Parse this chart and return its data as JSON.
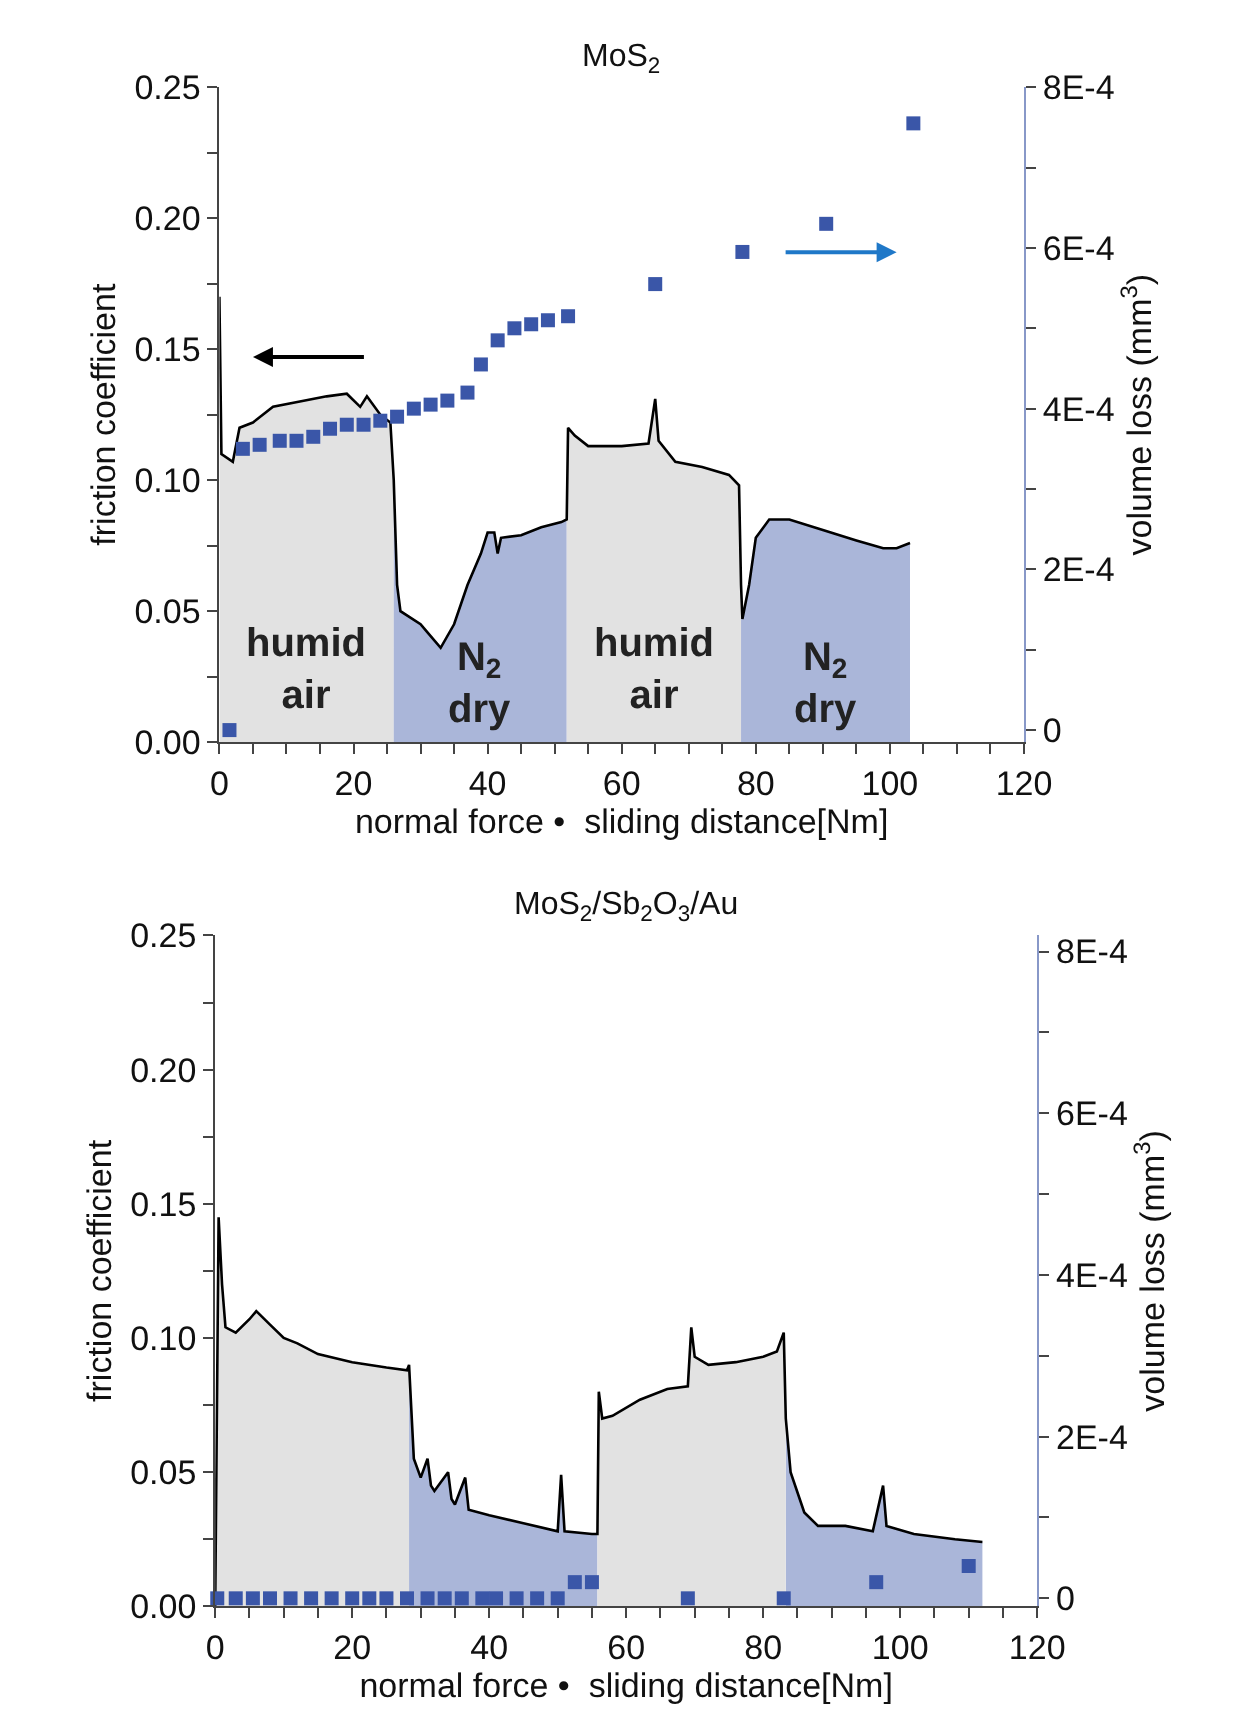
{
  "chart_data": [
    {
      "type": "area",
      "title": "MoS$_{2}$",
      "xlabel": "normal force •  sliding distance[Nm]",
      "ylabel": "friction coefficient",
      "y2label": "volume loss (mm$^{3}$)",
      "xlim": [
        0,
        120
      ],
      "xticks": [
        0,
        {
          "value": 5,
          "label": null
        },
        {
          "value": 10,
          "label": null
        },
        {
          "value": 15,
          "label": null
        },
        20,
        {
          "value": 25,
          "label": null
        },
        {
          "value": 30,
          "label": null
        },
        {
          "value": 35,
          "label": null
        },
        40,
        {
          "value": 45,
          "label": null
        },
        {
          "value": 50,
          "label": null
        },
        {
          "value": 55,
          "label": null
        },
        60,
        {
          "value": 65,
          "label": null
        },
        {
          "value": 70,
          "label": null
        },
        {
          "value": 75,
          "label": null
        },
        80,
        {
          "value": 85,
          "label": null
        },
        {
          "value": 90,
          "label": null
        },
        {
          "value": 95,
          "label": null
        },
        100,
        {
          "value": 105,
          "label": null
        },
        {
          "value": 110,
          "label": null
        },
        {
          "value": 115,
          "label": null
        },
        120
      ],
      "ylim": [
        0,
        0.25
      ],
      "yticks": [
        {
          "value": 0,
          "label": "0.00"
        },
        {
          "value": 0.025,
          "label": null
        },
        {
          "value": 0.05,
          "label": "0.05"
        },
        {
          "value": 0.075,
          "label": null
        },
        {
          "value": 0.1,
          "label": "0.10"
        },
        {
          "value": 0.125,
          "label": null
        },
        {
          "value": 0.15,
          "label": "0.15"
        },
        {
          "value": 0.175,
          "label": null
        },
        {
          "value": 0.2,
          "label": "0.20"
        },
        {
          "value": 0.225,
          "label": null
        },
        {
          "value": 0.25,
          "label": "0.25"
        }
      ],
      "y2lim": [
        -1.5e-05,
        0.0008
      ],
      "y2ticks": [
        {
          "value": 0,
          "label": "0"
        },
        {
          "value": 0.0001,
          "label": null
        },
        {
          "value": 0.0002,
          "label": "2E-4"
        },
        {
          "value": 0.0003,
          "label": null
        },
        {
          "value": 0.0004,
          "label": "4E-4"
        },
        {
          "value": 0.0005,
          "label": null
        },
        {
          "value": 0.0006,
          "label": "6E-4"
        },
        {
          "value": 0.0007,
          "label": null
        },
        {
          "value": 0.0008,
          "label": "8E-4"
        }
      ],
      "series": [
        {
          "color": "#e2e2e2",
          "x": [
            0,
            0.3,
            2,
            3,
            5,
            8,
            12,
            16,
            19,
            21,
            22,
            24,
            25.5,
            26
          ],
          "values": [
            0.17,
            0.11,
            0.107,
            0.12,
            0.122,
            0.128,
            0.13,
            0.132,
            0.133,
            0.128,
            0.132,
            0.125,
            0.122,
            0.1
          ]
        },
        {
          "color": "#aab6d9",
          "x": [
            26,
            26.5,
            27,
            30,
            31,
            33,
            35,
            37,
            39,
            40,
            41,
            41.5,
            42,
            45,
            48,
            51,
            51.8
          ],
          "values": [
            0.1,
            0.06,
            0.05,
            0.045,
            0.042,
            0.036,
            0.045,
            0.06,
            0.072,
            0.08,
            0.08,
            0.072,
            0.078,
            0.079,
            0.082,
            0.084,
            0.085
          ]
        },
        {
          "color": "#e2e2e2",
          "x": [
            51.8,
            52,
            53,
            55,
            60,
            64,
            65,
            65.5,
            68,
            72,
            76,
            77.5,
            77.8
          ],
          "values": [
            0.085,
            0.12,
            0.117,
            0.113,
            0.113,
            0.114,
            0.131,
            0.115,
            0.107,
            0.105,
            0.102,
            0.098,
            0.06
          ]
        },
        {
          "color": "#aab6d9",
          "x": [
            77.8,
            78,
            79,
            80,
            82,
            85,
            90,
            95,
            99,
            101,
            103
          ],
          "values": [
            0.06,
            0.047,
            0.06,
            0.078,
            0.085,
            0.085,
            0.081,
            0.077,
            0.074,
            0.074,
            0.076
          ]
        },
        {
          "type": "line",
          "color": "#000000",
          "x": [
            0,
            0.3,
            2,
            3,
            5,
            8,
            12,
            16,
            19,
            21,
            22,
            24,
            25.5,
            26,
            26.5,
            27,
            30,
            31,
            33,
            35,
            37,
            39,
            40,
            41,
            41.5,
            42,
            45,
            48,
            51,
            51.8,
            52,
            53,
            55,
            60,
            64,
            65,
            65.5,
            68,
            72,
            76,
            77.5,
            77.8,
            78,
            79,
            80,
            82,
            85,
            90,
            95,
            99,
            101,
            103
          ],
          "values": [
            0.17,
            0.11,
            0.107,
            0.12,
            0.122,
            0.128,
            0.13,
            0.132,
            0.133,
            0.128,
            0.132,
            0.125,
            0.122,
            0.1,
            0.06,
            0.05,
            0.045,
            0.042,
            0.036,
            0.045,
            0.06,
            0.072,
            0.08,
            0.08,
            0.072,
            0.078,
            0.079,
            0.082,
            0.084,
            0.085,
            0.12,
            0.117,
            0.113,
            0.113,
            0.114,
            0.131,
            0.115,
            0.107,
            0.105,
            0.102,
            0.098,
            0.06,
            0.047,
            0.06,
            0.078,
            0.085,
            0.085,
            0.081,
            0.077,
            0.074,
            0.074,
            0.076
          ]
        },
        {
          "type": "scatter",
          "marker": "square",
          "axis": "y2",
          "color": "#3a56a8",
          "x": [
            1.5,
            3.5,
            6,
            9,
            11.5,
            14,
            16.5,
            19,
            21.5,
            24,
            26.5,
            29,
            31.5,
            34,
            37,
            39,
            41.5,
            44,
            46.5,
            49,
            52,
            65,
            78,
            90.5,
            103.5
          ],
          "values": [
            0,
            0.00035,
            0.000355,
            0.00036,
            0.00036,
            0.000365,
            0.000375,
            0.00038,
            0.00038,
            0.000385,
            0.00039,
            0.0004,
            0.000405,
            0.00041,
            0.00042,
            0.000455,
            0.000485,
            0.0005,
            0.000505,
            0.00051,
            0.000515,
            0.000555,
            0.000595,
            0.00063,
            0.000755
          ]
        }
      ],
      "annotations": [
        "humid\nair",
        "N$_{2}$\ndry",
        "humid\nair",
        "N$_{2}$\ndry"
      ]
    },
    {
      "type": "area",
      "title": "MoS$_{2}$/Sb$_{2}$O$_{3}$/Au",
      "xlabel": "normal force •  sliding distance[Nm]",
      "ylabel": "friction coefficient",
      "y2label": "volume loss (mm$^{3}$)",
      "xlim": [
        0,
        120
      ],
      "xticks": [
        0,
        {
          "value": 5,
          "label": null
        },
        {
          "value": 10,
          "label": null
        },
        {
          "value": 15,
          "label": null
        },
        20,
        {
          "value": 25,
          "label": null
        },
        {
          "value": 30,
          "label": null
        },
        {
          "value": 35,
          "label": null
        },
        40,
        {
          "value": 45,
          "label": null
        },
        {
          "value": 50,
          "label": null
        },
        {
          "value": 55,
          "label": null
        },
        60,
        {
          "value": 65,
          "label": null
        },
        {
          "value": 70,
          "label": null
        },
        {
          "value": 75,
          "label": null
        },
        80,
        {
          "value": 85,
          "label": null
        },
        {
          "value": 90,
          "label": null
        },
        {
          "value": 95,
          "label": null
        },
        100,
        {
          "value": 105,
          "label": null
        },
        {
          "value": 110,
          "label": null
        },
        {
          "value": 115,
          "label": null
        },
        120
      ],
      "ylim": [
        0,
        0.25
      ],
      "yticks": [
        {
          "value": 0,
          "label": "0.00"
        },
        {
          "value": 0.025,
          "label": null
        },
        {
          "value": 0.05,
          "label": "0.05"
        },
        {
          "value": 0.075,
          "label": null
        },
        {
          "value": 0.1,
          "label": "0.10"
        },
        {
          "value": 0.125,
          "label": null
        },
        {
          "value": 0.15,
          "label": "0.15"
        },
        {
          "value": 0.175,
          "label": null
        },
        {
          "value": 0.2,
          "label": "0.20"
        },
        {
          "value": 0.225,
          "label": null
        },
        {
          "value": 0.25,
          "label": "0.25"
        }
      ],
      "y2lim": [
        -1e-05,
        0.00082
      ],
      "y2ticks": [
        {
          "value": 0,
          "label": "0"
        },
        {
          "value": 0.0001,
          "label": null
        },
        {
          "value": 0.0002,
          "label": "2E-4"
        },
        {
          "value": 0.0003,
          "label": null
        },
        {
          "value": 0.0004,
          "label": "4E-4"
        },
        {
          "value": 0.0005,
          "label": null
        },
        {
          "value": 0.0006,
          "label": "6E-4"
        },
        {
          "value": 0.0007,
          "label": null
        },
        {
          "value": 0.0008,
          "label": "8E-4"
        }
      ],
      "series": [
        {
          "color": "#e2e2e2",
          "x": [
            0,
            0.5,
            1,
            1.5,
            3,
            5,
            6,
            8,
            10,
            12,
            15,
            20,
            25,
            28,
            28.3
          ],
          "values": [
            0,
            0.145,
            0.12,
            0.104,
            0.102,
            0.107,
            0.11,
            0.105,
            0.1,
            0.098,
            0.094,
            0.091,
            0.089,
            0.088,
            0.09
          ]
        },
        {
          "color": "#aab6d9",
          "x": [
            28.3,
            29,
            30,
            31,
            31.5,
            32,
            34,
            34.5,
            35,
            36.5,
            37,
            40,
            45,
            50,
            50.5,
            51,
            55,
            55.8
          ],
          "values": [
            0.09,
            0.055,
            0.048,
            0.055,
            0.045,
            0.043,
            0.05,
            0.04,
            0.038,
            0.048,
            0.036,
            0.034,
            0.031,
            0.028,
            0.049,
            0.028,
            0.027,
            0.027
          ]
        },
        {
          "color": "#aab6d9",
          "x": [
            83.3,
            84,
            86,
            88,
            92,
            96,
            97.5,
            98,
            102,
            108,
            112
          ],
          "values": [
            0.07,
            0.05,
            0.035,
            0.03,
            0.03,
            0.028,
            0.045,
            0.03,
            0.027,
            0.025,
            0.024
          ]
        },
        {
          "color": "#e2e2e2",
          "x": [
            55.8,
            56,
            56.5,
            58,
            62,
            66,
            69,
            69.5,
            70,
            72,
            76,
            80,
            82,
            83,
            83.3
          ],
          "values": [
            0.027,
            0.08,
            0.07,
            0.071,
            0.077,
            0.081,
            0.082,
            0.104,
            0.093,
            0.09,
            0.091,
            0.093,
            0.095,
            0.102,
            0.07
          ]
        },
        {
          "type": "line",
          "color": "#000000",
          "x": [
            0,
            0.5,
            1,
            1.5,
            3,
            5,
            6,
            8,
            10,
            12,
            15,
            20,
            25,
            28,
            28.3,
            29,
            30,
            31,
            31.5,
            32,
            34,
            34.5,
            35,
            36.5,
            37,
            40,
            45,
            50,
            50.5,
            51,
            55,
            55.8,
            56,
            56.5,
            58,
            62,
            66,
            69,
            69.5,
            70,
            72,
            76,
            80,
            82,
            83,
            83.3,
            84,
            86,
            88,
            92,
            96,
            97.5,
            98,
            102,
            108,
            112
          ],
          "values": [
            0,
            0.145,
            0.12,
            0.104,
            0.102,
            0.107,
            0.11,
            0.105,
            0.1,
            0.098,
            0.094,
            0.091,
            0.089,
            0.088,
            0.09,
            0.055,
            0.048,
            0.055,
            0.045,
            0.043,
            0.05,
            0.04,
            0.038,
            0.048,
            0.036,
            0.034,
            0.031,
            0.028,
            0.049,
            0.028,
            0.027,
            0.027,
            0.08,
            0.07,
            0.071,
            0.077,
            0.081,
            0.082,
            0.104,
            0.093,
            0.09,
            0.091,
            0.093,
            0.095,
            0.102,
            0.07,
            0.05,
            0.035,
            0.03,
            0.03,
            0.028,
            0.045,
            0.03,
            0.027,
            0.025,
            0.024
          ]
        },
        {
          "type": "scatter",
          "marker": "square",
          "axis": "y2",
          "color": "#3a56a8",
          "x": [
            0.3,
            3,
            5.5,
            8,
            11,
            14,
            17,
            20,
            22.5,
            25,
            28,
            31,
            33.5,
            36,
            39,
            41,
            44,
            47,
            50,
            52.5,
            55,
            69,
            83,
            96.5,
            110
          ],
          "values": [
            0,
            0,
            0,
            0,
            0,
            0,
            0,
            0,
            0,
            0,
            0,
            0,
            0,
            0,
            0,
            0,
            0,
            0,
            0,
            2e-05,
            2e-05,
            0,
            0,
            2e-05,
            4e-05
          ]
        }
      ]
    }
  ]
}
